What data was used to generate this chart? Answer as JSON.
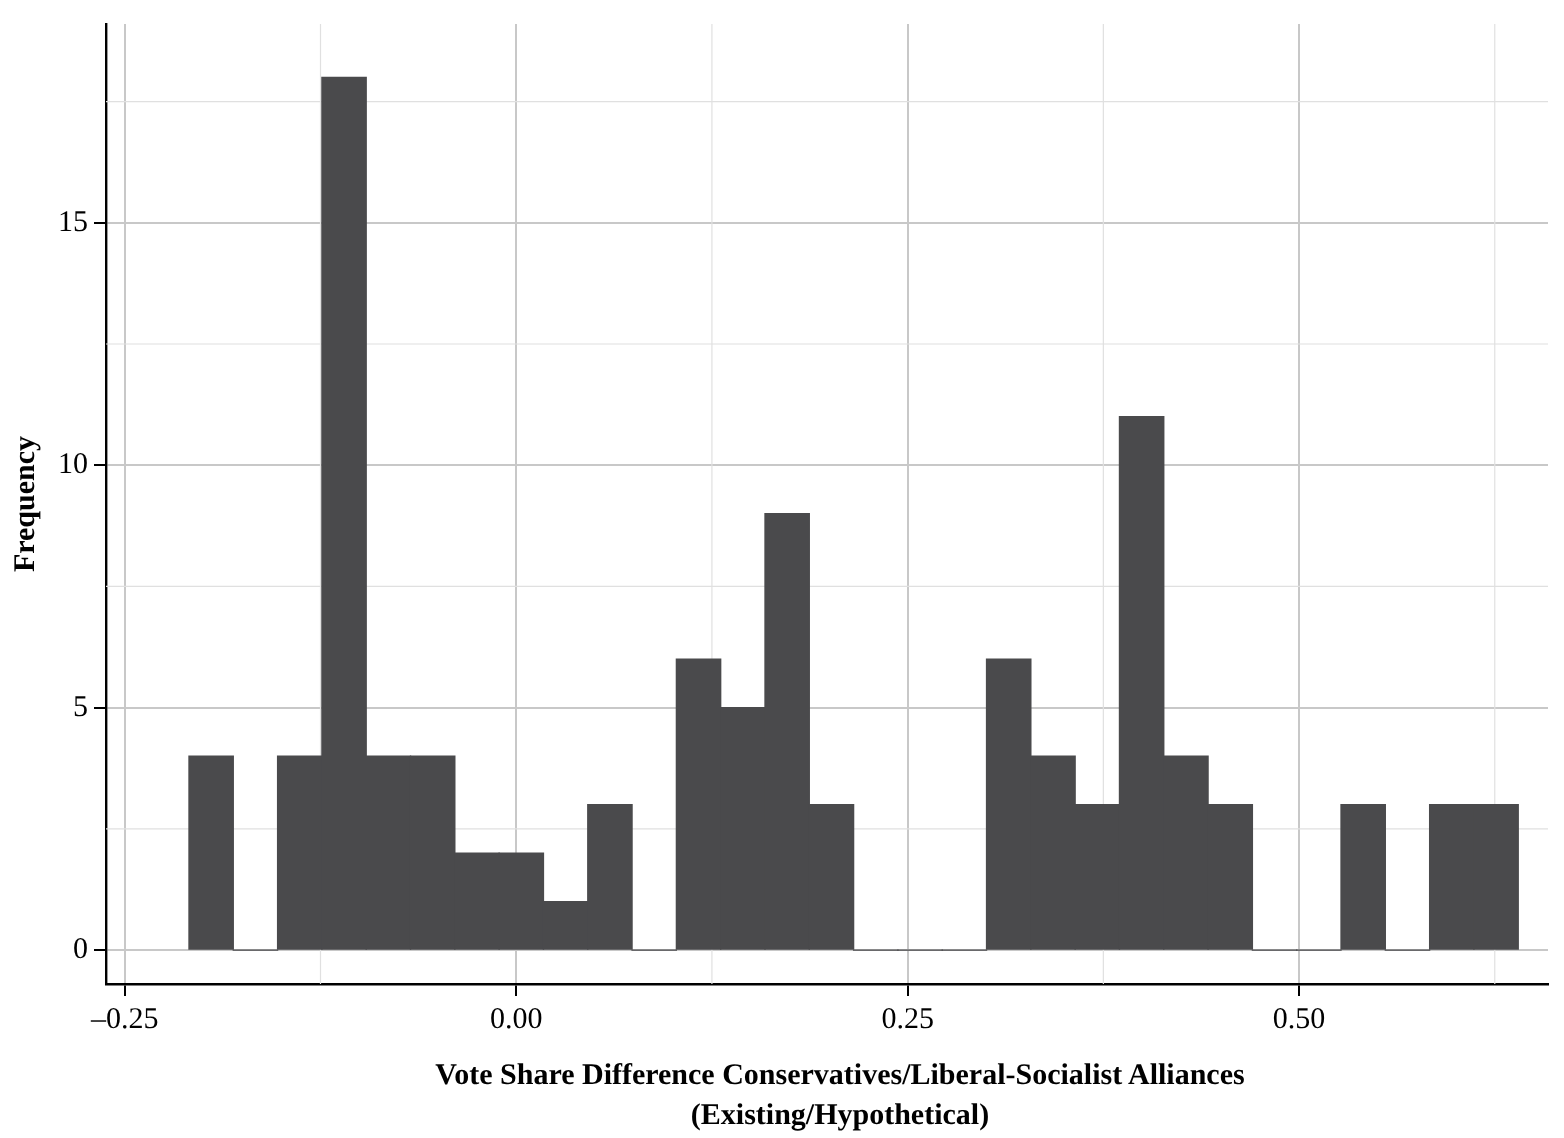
{
  "chart_data": {
    "type": "histogram",
    "xlabel": "Vote Share Difference Conservatives/Liberal-Socialist Alliances (Existing/Hypothetical)",
    "ylabel": "Frequency",
    "bins": [
      -0.209,
      -0.1807,
      -0.1524,
      -0.1241,
      -0.0958,
      -0.0675,
      -0.0392,
      -0.0109,
      0.0174,
      0.0457,
      0.074,
      0.1023,
      0.1306,
      0.1589,
      0.1872,
      0.2155,
      0.2438,
      0.2721,
      0.3004,
      0.3287,
      0.357,
      0.3853,
      0.4136,
      0.4419,
      0.4702,
      0.4985,
      0.5268,
      0.5551,
      0.5834,
      0.6117,
      0.64
    ],
    "values": [
      4,
      0,
      4,
      18,
      4,
      4,
      2,
      2,
      1,
      3,
      0,
      6,
      5,
      9,
      3,
      0,
      0,
      0,
      6,
      4,
      3,
      11,
      4,
      3,
      0,
      0,
      3,
      0,
      3,
      3
    ],
    "color": "#4a4a4c",
    "xlim": [
      -0.262,
      0.659
    ],
    "ylim": [
      -0.7,
      19.1
    ],
    "xticks": [
      {
        "value": -0.25,
        "label": "–0.25"
      },
      {
        "value": 0,
        "label": "0.00"
      },
      {
        "value": 0.25,
        "label": "0.25"
      },
      {
        "value": 0.5,
        "label": "0.50"
      }
    ],
    "yticks": [
      0,
      5,
      10,
      15
    ],
    "grid": true
  }
}
